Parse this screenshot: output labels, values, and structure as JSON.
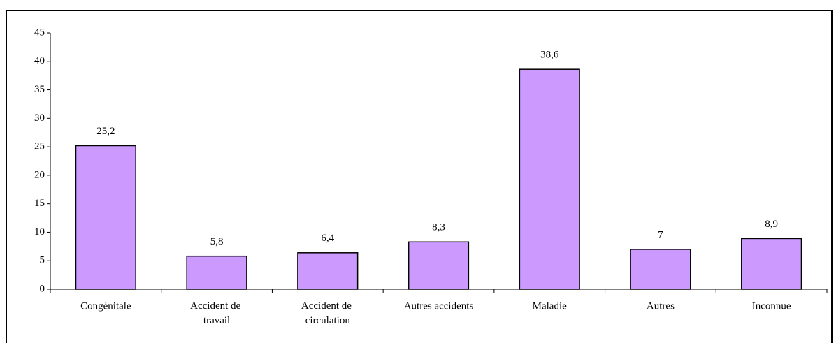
{
  "chart_data": {
    "type": "bar",
    "categories": [
      "Congénitale",
      "Accident de travail",
      "Accident de circulation",
      "Autres accidents",
      "Maladie",
      "Autres",
      "Inconnue"
    ],
    "values": [
      25.2,
      5.8,
      6.4,
      8.3,
      38.6,
      7,
      8.9
    ],
    "value_labels": [
      "25,2",
      "5,8",
      "6,4",
      "8,3",
      "38,6",
      "7",
      "8,9"
    ],
    "color": "#cc99ff",
    "ylim": [
      0,
      45
    ],
    "yticks": [
      0,
      5,
      10,
      15,
      20,
      25,
      30,
      35,
      40,
      45
    ],
    "grid": false
  }
}
